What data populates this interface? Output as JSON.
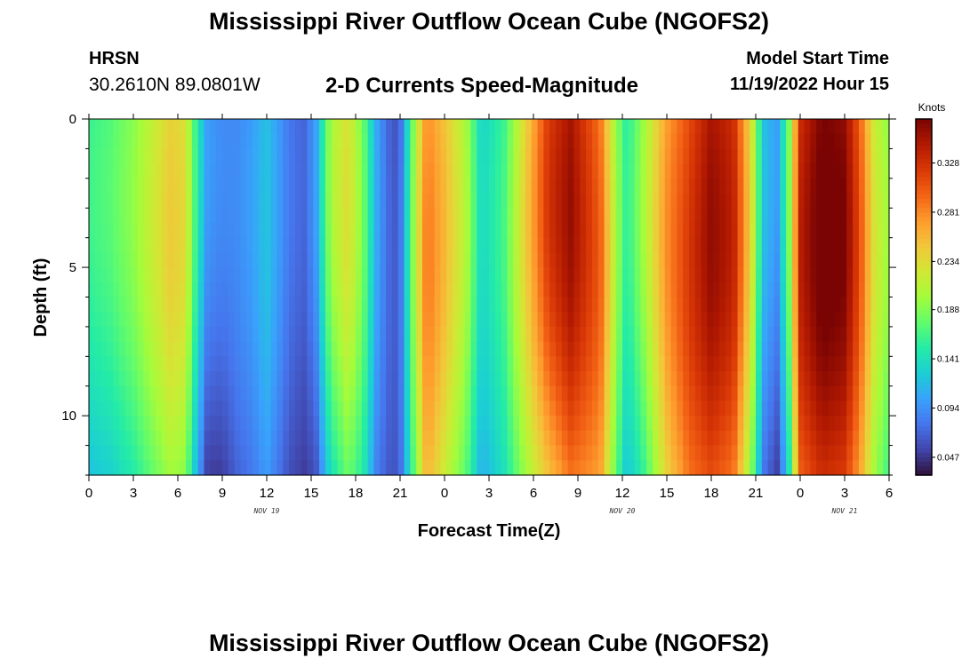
{
  "page": {
    "title": "Mississippi River Outflow Ocean Cube (NGOFS2)",
    "station": "HRSN",
    "coordinates": "30.2610N  89.0801W",
    "subtitle": "2-D Currents Speed-Magnitude",
    "model_start_label": "Model Start Time",
    "model_start_value": "11/19/2022 Hour 15",
    "second_title": "Mississippi River Outflow Ocean Cube (NGOFS2)"
  },
  "chart_data": {
    "type": "heatmap",
    "title": "2-D Currents Speed-Magnitude",
    "xlabel": "Forecast Time(Z)",
    "ylabel": "Depth (ft)",
    "x_range_hours": [
      0,
      54
    ],
    "y_range": [
      0,
      12
    ],
    "y_inverted": true,
    "x_tick_labels": [
      "0",
      "3",
      "6",
      "9",
      "12",
      "15",
      "18",
      "21",
      "0",
      "3",
      "6",
      "9",
      "12",
      "15",
      "18",
      "21",
      "0",
      "3",
      "6"
    ],
    "y_ticks": [
      0,
      5,
      10
    ],
    "day_labels": [
      {
        "label": "NOV 19",
        "hour": 12
      },
      {
        "label": "NOV 20",
        "hour": 36
      },
      {
        "label": "NOV 21",
        "hour": 51
      }
    ],
    "colorbar": {
      "units": "Knots",
      "min": 0.03,
      "max": 0.37,
      "ticks": [
        0.047,
        0.094,
        0.141,
        0.188,
        0.234,
        0.281,
        0.328
      ],
      "colors": [
        "#30123b",
        "#4145ab",
        "#4675ed",
        "#39a2fc",
        "#1bcfd4",
        "#24eca6",
        "#61fc6c",
        "#a4fc3b",
        "#d1e834",
        "#f3c63a",
        "#fe9b2d",
        "#f36315",
        "#d93806",
        "#b11901",
        "#7a0403"
      ]
    },
    "time_series": {
      "hours": [
        0,
        1.5,
        3,
        4.5,
        5.5,
        6.5,
        7.3,
        8,
        9,
        10,
        11,
        12,
        13.5,
        14.5,
        15.3,
        16.3,
        17.5,
        18.5,
        19.5,
        20.5,
        21,
        22,
        22.8,
        24,
        25.5,
        26.5,
        28,
        29.5,
        31,
        32.5,
        34.5,
        35.5,
        36.3,
        37.5,
        39,
        40.5,
        42,
        43.5,
        44.7,
        45.5,
        46.5,
        47.3,
        48,
        49.5,
        51,
        52,
        53,
        54
      ],
      "surface_speed": [
        0.16,
        0.17,
        0.19,
        0.22,
        0.24,
        0.23,
        0.15,
        0.1,
        0.09,
        0.09,
        0.1,
        0.12,
        0.08,
        0.07,
        0.1,
        0.2,
        0.23,
        0.18,
        0.1,
        0.06,
        0.07,
        0.2,
        0.28,
        0.25,
        0.2,
        0.13,
        0.16,
        0.24,
        0.32,
        0.35,
        0.29,
        0.2,
        0.15,
        0.2,
        0.27,
        0.31,
        0.35,
        0.33,
        0.23,
        0.12,
        0.1,
        0.19,
        0.33,
        0.37,
        0.36,
        0.3,
        0.22,
        0.19
      ],
      "bottom_speed": [
        0.12,
        0.13,
        0.15,
        0.18,
        0.2,
        0.19,
        0.11,
        0.05,
        0.05,
        0.07,
        0.08,
        0.1,
        0.06,
        0.05,
        0.06,
        0.14,
        0.18,
        0.15,
        0.08,
        0.06,
        0.07,
        0.18,
        0.26,
        0.22,
        0.17,
        0.11,
        0.14,
        0.2,
        0.25,
        0.29,
        0.27,
        0.18,
        0.12,
        0.16,
        0.24,
        0.29,
        0.31,
        0.29,
        0.19,
        0.08,
        0.05,
        0.15,
        0.3,
        0.33,
        0.32,
        0.27,
        0.2,
        0.16
      ]
    }
  }
}
